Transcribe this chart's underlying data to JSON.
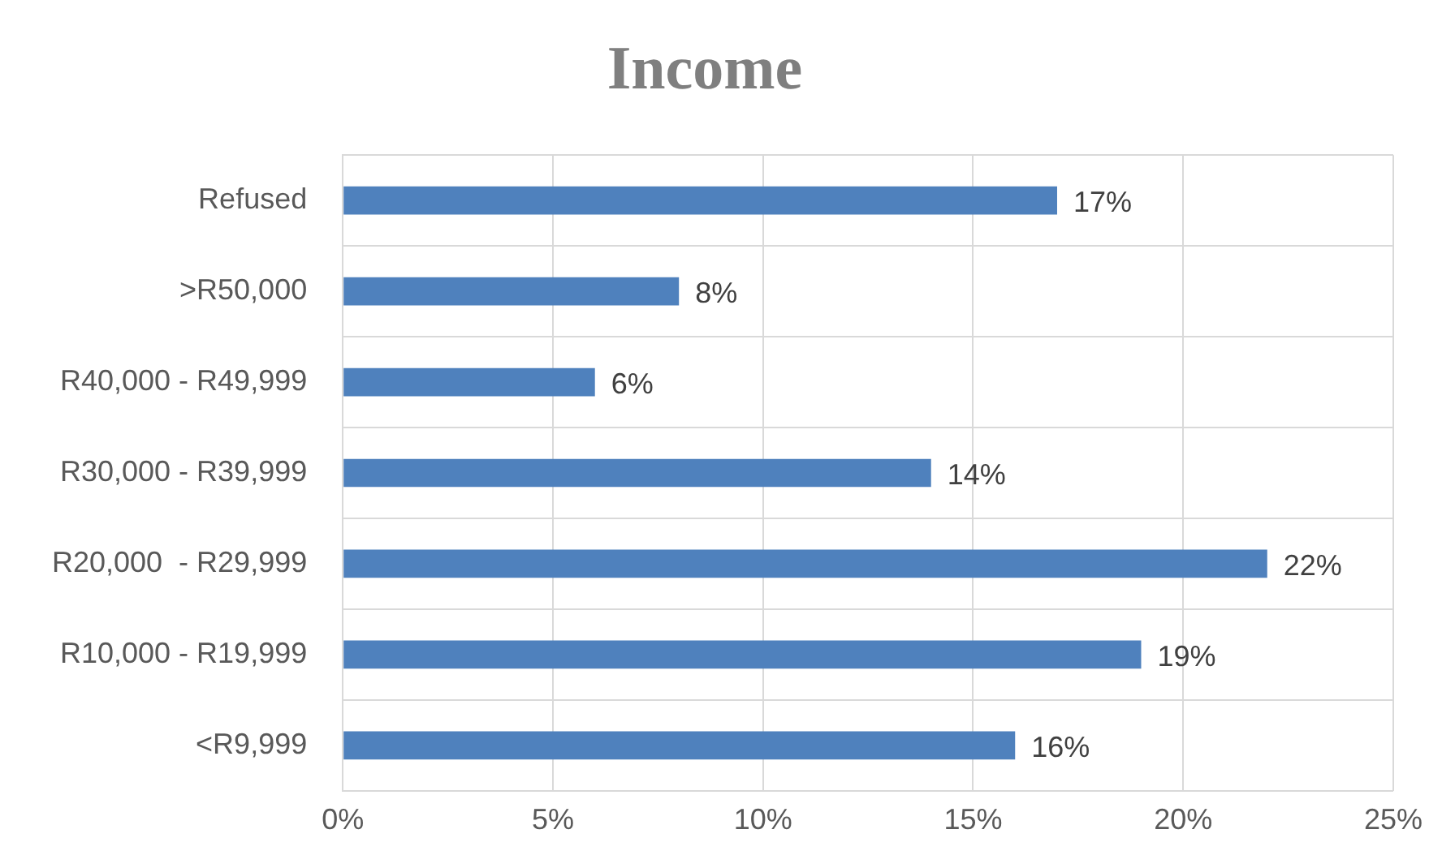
{
  "chart_data": {
    "type": "bar",
    "orientation": "horizontal",
    "title": "Income",
    "categories": [
      "Refused",
      ">R50,000",
      "R40,000 - R49,999",
      "R30,000 - R39,999",
      "R20,000  - R29,999",
      "R10,000 - R19,999",
      "<R9,999"
    ],
    "values": [
      17,
      8,
      6,
      14,
      22,
      19,
      16
    ],
    "value_labels": [
      "17%",
      "8%",
      "6%",
      "14%",
      "22%",
      "19%",
      "16%"
    ],
    "color": "#4f81bd",
    "xlim": [
      0,
      25
    ],
    "xticks": [
      {
        "value": 0,
        "label": "0%"
      },
      {
        "value": 5,
        "label": "5%"
      },
      {
        "value": 10,
        "label": "10%"
      },
      {
        "value": 15,
        "label": "15%"
      },
      {
        "value": 20,
        "label": "20%"
      },
      {
        "value": 25,
        "label": "25%"
      }
    ],
    "grid": true,
    "legend": false
  }
}
